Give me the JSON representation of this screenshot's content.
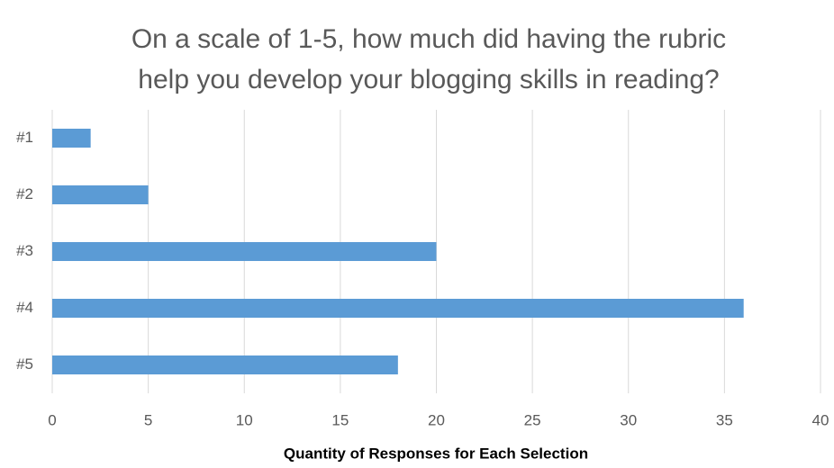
{
  "chart_data": {
    "type": "bar",
    "orientation": "horizontal",
    "title": [
      "On a scale of 1-5, how much did having the rubric",
      "help you develop your blogging skills in reading?"
    ],
    "categories": [
      "#1",
      "#2",
      "#3",
      "#4",
      "#5"
    ],
    "values": [
      2,
      5,
      20,
      36,
      18
    ],
    "color": "#5b9bd5",
    "xlabel": "Quantity of Responses for Each Selection",
    "xlim": [
      0,
      40
    ],
    "xticks": [
      0,
      5,
      10,
      15,
      20,
      25,
      30,
      35,
      40
    ],
    "grid": true
  }
}
